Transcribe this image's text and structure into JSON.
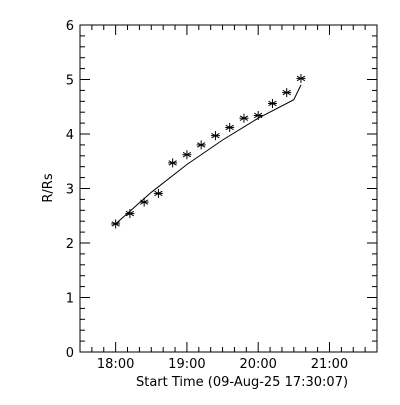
{
  "chart_data": {
    "type": "scatter",
    "ylabel": "R/Rs",
    "xlabel": "Start Time (09-Aug-25 17:30:07)",
    "xlim": [
      "17:30",
      "21:40"
    ],
    "ylim": [
      0,
      6
    ],
    "x_ticks": [
      "18:00",
      "19:00",
      "20:00",
      "21:00"
    ],
    "y_ticks": [
      0,
      1,
      2,
      3,
      4,
      5,
      6
    ],
    "grid": false,
    "series": [
      {
        "marker": "asterisk",
        "points": [
          {
            "x": "18:00",
            "y": 2.35
          },
          {
            "x": "18:12",
            "y": 2.54
          },
          {
            "x": "18:24",
            "y": 2.75
          },
          {
            "x": "18:36",
            "y": 2.91
          },
          {
            "x": "18:48",
            "y": 3.47
          },
          {
            "x": "19:00",
            "y": 3.62
          },
          {
            "x": "19:12",
            "y": 3.8
          },
          {
            "x": "19:24",
            "y": 3.97
          },
          {
            "x": "19:36",
            "y": 4.12
          },
          {
            "x": "19:48",
            "y": 4.29
          },
          {
            "x": "20:00",
            "y": 4.34
          },
          {
            "x": "20:12",
            "y": 4.56
          },
          {
            "x": "20:24",
            "y": 4.76
          },
          {
            "x": "20:36",
            "y": 5.02
          }
        ]
      }
    ],
    "fit_curve": {
      "style": "solid",
      "points": [
        {
          "x": "18:00",
          "y": 2.35
        },
        {
          "x": "18:30",
          "y": 2.93
        },
        {
          "x": "19:00",
          "y": 3.44
        },
        {
          "x": "19:30",
          "y": 3.89
        },
        {
          "x": "20:00",
          "y": 4.29
        },
        {
          "x": "20:30",
          "y": 4.63
        },
        {
          "x": "20:36",
          "y": 4.9
        }
      ]
    },
    "colors": {
      "axes": "#000000",
      "data": "#000000",
      "background": "#ffffff"
    }
  }
}
